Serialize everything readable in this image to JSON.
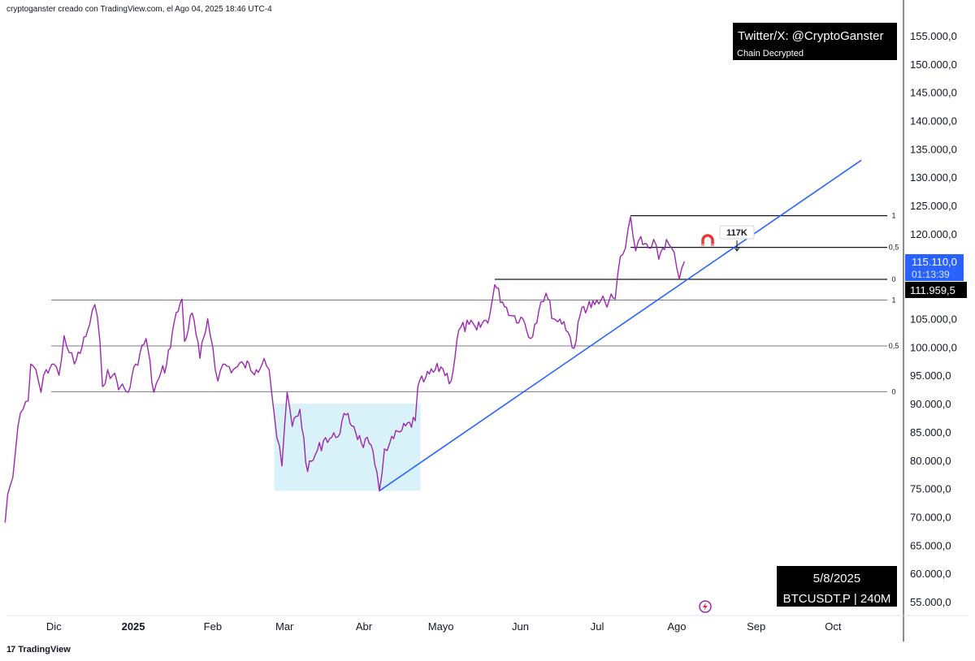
{
  "header": {
    "attribution": "cryptoganster creado con TradingView.com, el Ago 04, 2025 18:46 UTC-4"
  },
  "watermark_box": {
    "handle": "Twitter/X: @CryptoGanster",
    "subtitle": "Chain Decrypted"
  },
  "info_box": {
    "date": "5/8/2025",
    "symbol": "BTCUSDT.P | 240M"
  },
  "price_badge": {
    "price": "115.110,0",
    "countdown": "01:13:39",
    "level": "111.959,5"
  },
  "target_label": "117K",
  "footer": {
    "logo_text": "TradingView",
    "logo_mark": "17"
  },
  "colors": {
    "price_line": "#9c27b0",
    "trendline": "#2962ff",
    "range_box": "#d9f1f8",
    "badge_blue": "#2962ff",
    "magnet": "#e53935"
  },
  "chart_data": {
    "type": "line",
    "symbol": "BTCUSDT.P",
    "timeframe": "240M",
    "x_tick_labels": [
      "Dic",
      "2025",
      "Feb",
      "Mar",
      "Abr",
      "Mayo",
      "Jun",
      "Jul",
      "Ago",
      "Sep",
      "Oct"
    ],
    "y_tick_labels": [
      "155.000,0",
      "150.000,0",
      "145.000,0",
      "140.000,0",
      "135.000,0",
      "130.000,0",
      "125.000,0",
      "120.000,0",
      "105.000,0",
      "100.000,0",
      "95.000,0",
      "90.000,0",
      "85.000,0",
      "80.000,0",
      "75.000,0",
      "70.000,0",
      "65.000,0",
      "60.000,0",
      "55.000,0"
    ],
    "y_ticks": [
      155000,
      150000,
      145000,
      140000,
      135000,
      130000,
      125000,
      120000,
      105000,
      100000,
      95000,
      90000,
      85000,
      80000,
      75000,
      70000,
      65000,
      60000,
      55000
    ],
    "ylim": [
      52000,
      158000
    ],
    "series": [
      {
        "values": [
          [
            "2024-11-12",
            69000
          ],
          [
            "2024-11-13",
            74000
          ],
          [
            "2024-11-15",
            77000
          ],
          [
            "2024-11-17",
            86000
          ],
          [
            "2024-11-19",
            89000
          ],
          [
            "2024-11-21",
            90500
          ],
          [
            "2024-11-22",
            97000
          ],
          [
            "2024-11-24",
            96000
          ],
          [
            "2024-11-26",
            92000
          ],
          [
            "2024-11-28",
            96000
          ],
          [
            "2024-12-01",
            97000
          ],
          [
            "2024-12-03",
            95000
          ],
          [
            "2024-12-05",
            102000
          ],
          [
            "2024-12-07",
            99000
          ],
          [
            "2024-12-09",
            97000
          ],
          [
            "2024-12-12",
            100000
          ],
          [
            "2024-12-15",
            104000
          ],
          [
            "2024-12-17",
            107500
          ],
          [
            "2024-12-19",
            101000
          ],
          [
            "2024-12-20",
            93000
          ],
          [
            "2024-12-22",
            96000
          ],
          [
            "2024-12-24",
            95000
          ],
          [
            "2024-12-27",
            93000
          ],
          [
            "2024-12-30",
            92000
          ],
          [
            "2025-01-02",
            97000
          ],
          [
            "2025-01-06",
            101500
          ],
          [
            "2025-01-09",
            92000
          ],
          [
            "2025-01-11",
            94500
          ],
          [
            "2025-01-14",
            97000
          ],
          [
            "2025-01-17",
            104500
          ],
          [
            "2025-01-20",
            108500
          ],
          [
            "2025-01-21",
            101000
          ],
          [
            "2025-01-24",
            106000
          ],
          [
            "2025-01-27",
            98000
          ],
          [
            "2025-01-30",
            105000
          ],
          [
            "2025-02-01",
            100000
          ],
          [
            "2025-02-03",
            94000
          ],
          [
            "2025-02-05",
            97000
          ],
          [
            "2025-02-09",
            96000
          ],
          [
            "2025-02-13",
            97000
          ],
          [
            "2025-02-18",
            96000
          ],
          [
            "2025-02-21",
            98000
          ],
          [
            "2025-02-23",
            96000
          ],
          [
            "2025-02-25",
            88000
          ],
          [
            "2025-02-26",
            84000
          ],
          [
            "2025-02-28",
            79000
          ],
          [
            "2025-03-02",
            92000
          ],
          [
            "2025-03-04",
            86000
          ],
          [
            "2025-03-07",
            89000
          ],
          [
            "2025-03-10",
            78000
          ],
          [
            "2025-03-13",
            81000
          ],
          [
            "2025-03-17",
            84000
          ],
          [
            "2025-03-21",
            84000
          ],
          [
            "2025-03-25",
            88000
          ],
          [
            "2025-03-28",
            86000
          ],
          [
            "2025-03-31",
            83000
          ],
          [
            "2025-04-03",
            83000
          ],
          [
            "2025-04-06",
            78000
          ],
          [
            "2025-04-07",
            74600
          ],
          [
            "2025-04-09",
            82000
          ],
          [
            "2025-04-11",
            83000
          ],
          [
            "2025-04-15",
            85000
          ],
          [
            "2025-04-21",
            87000
          ],
          [
            "2025-04-22",
            93000
          ],
          [
            "2025-04-25",
            94500
          ],
          [
            "2025-05-01",
            96500
          ],
          [
            "2025-05-05",
            94000
          ],
          [
            "2025-05-08",
            103000
          ],
          [
            "2025-05-12",
            104000
          ],
          [
            "2025-05-15",
            103000
          ],
          [
            "2025-05-20",
            105500
          ],
          [
            "2025-05-22",
            111000
          ],
          [
            "2025-05-25",
            108000
          ],
          [
            "2025-05-29",
            105500
          ],
          [
            "2025-06-02",
            105000
          ],
          [
            "2025-06-05",
            101500
          ],
          [
            "2025-06-09",
            108000
          ],
          [
            "2025-06-11",
            109500
          ],
          [
            "2025-06-14",
            105000
          ],
          [
            "2025-06-18",
            104500
          ],
          [
            "2025-06-22",
            99800
          ],
          [
            "2025-06-25",
            107000
          ],
          [
            "2025-06-30",
            107500
          ],
          [
            "2025-07-04",
            108000
          ],
          [
            "2025-07-08",
            108500
          ],
          [
            "2025-07-10",
            116000
          ],
          [
            "2025-07-12",
            117500
          ],
          [
            "2025-07-14",
            123000
          ],
          [
            "2025-07-16",
            117000
          ],
          [
            "2025-07-18",
            119500
          ],
          [
            "2025-07-21",
            117500
          ],
          [
            "2025-07-23",
            119000
          ],
          [
            "2025-07-25",
            115500
          ],
          [
            "2025-07-28",
            119000
          ],
          [
            "2025-07-30",
            117500
          ],
          [
            "2025-08-01",
            114000
          ],
          [
            "2025-08-02",
            112000
          ],
          [
            "2025-08-03",
            114000
          ],
          [
            "2025-08-04",
            115100
          ]
        ]
      }
    ],
    "trendline": {
      "from": [
        "2025-04-07",
        74600
      ],
      "to": [
        "2025-10-12",
        133000
      ]
    },
    "range_box": {
      "from": "2025-02-25",
      "to": "2025-04-23",
      "y_from": 74600,
      "y_to": 90000
    },
    "fib_lower": {
      "from": "2024-11-30",
      "levels": [
        {
          "label": "1",
          "value": 108300
        },
        {
          "label": "0,5",
          "value": 100200
        },
        {
          "label": "0",
          "value": 92100
        }
      ]
    },
    "fib_upper": {
      "from": "2025-07-14",
      "levels": [
        {
          "label": "1",
          "value": 123200
        },
        {
          "label": "0,5",
          "value": 117600
        },
        {
          "label": "0",
          "value": 111959.5
        }
      ]
    },
    "swing_segment": {
      "from": "2025-05-22",
      "value": 111959.5
    },
    "date_anchor": "2024-11-10"
  }
}
